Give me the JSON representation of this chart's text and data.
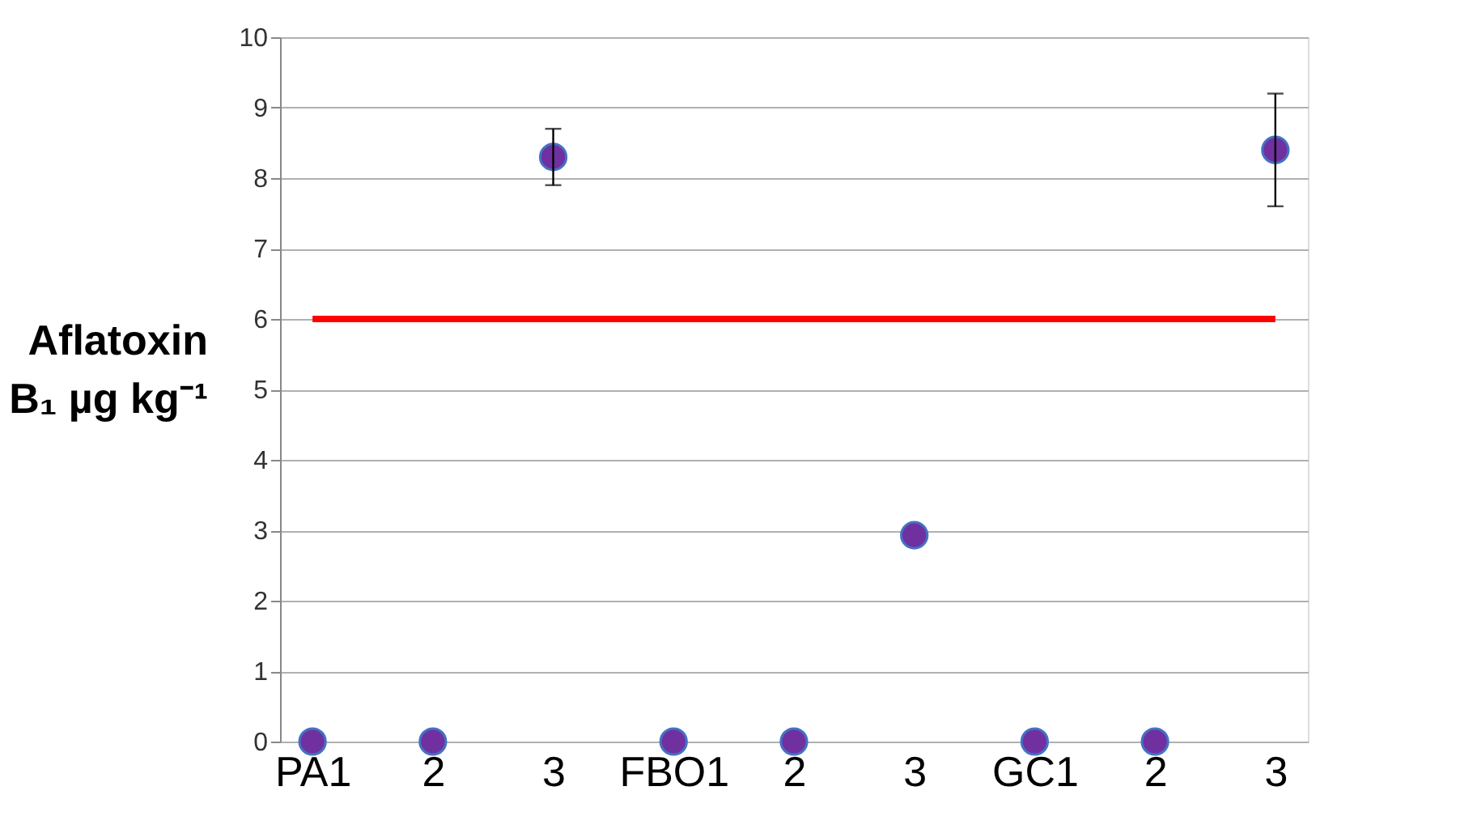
{
  "chart_data": {
    "type": "scatter",
    "ylabel": "Aflatoxin B₁ µg kg⁻¹",
    "categories": [
      "PA1",
      "2",
      "3",
      "FBO1",
      "2",
      "3",
      "GC1",
      "2",
      "3"
    ],
    "series": [
      {
        "color": "#7030a0",
        "values": [
          0,
          0,
          8.3,
          0,
          0,
          2.93,
          0,
          0,
          8.4
        ],
        "errors": [
          null,
          null,
          0.4,
          null,
          null,
          null,
          null,
          null,
          0.8
        ]
      }
    ],
    "ylim": [
      0,
      10
    ],
    "yticks": [
      0,
      1,
      2,
      3,
      4,
      5,
      6,
      7,
      8,
      9,
      10
    ],
    "grid": "y",
    "marker": "circle",
    "ref_lines": [
      {
        "axis": "y",
        "value": 6,
        "color": "#ff0000"
      }
    ]
  }
}
